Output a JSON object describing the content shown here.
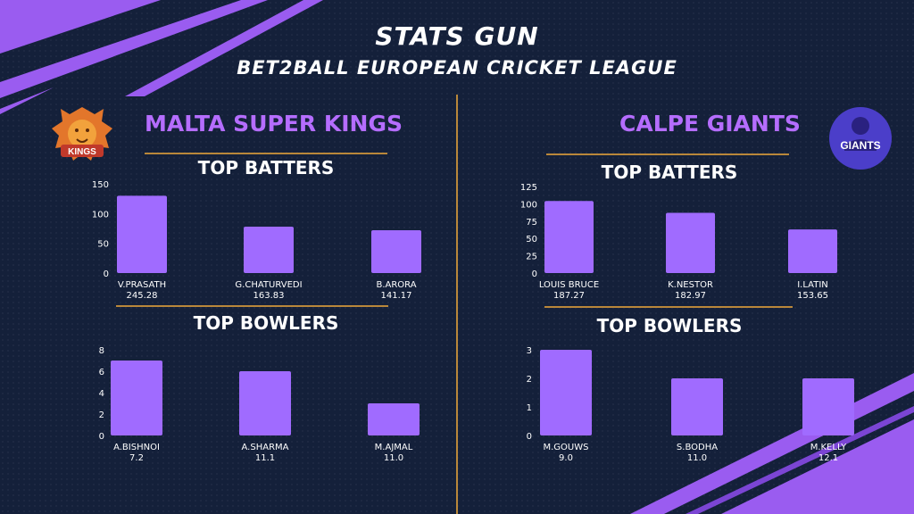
{
  "header": {
    "title": "STATS GUN",
    "subtitle": "BET2BALL EUROPEAN CRICKET LEAGUE"
  },
  "colors": {
    "bar": "#a06bff",
    "accent_purple": "#b56dff",
    "divider_gold": "#b9873a",
    "background": "#14203a"
  },
  "teams": [
    {
      "name": "MALTA SUPER KINGS",
      "logo_icon": "lion-icon",
      "logo_text": "KINGS"
    },
    {
      "name": "CALPE GIANTS",
      "logo_icon": "giant-icon",
      "logo_text": "GIANTS"
    }
  ],
  "chart_data": [
    {
      "type": "bar",
      "title": "TOP BATTERS",
      "categories": [
        "V.PRASATH",
        "G.CHATURVEDI",
        "B.ARORA"
      ],
      "values": [
        130,
        78,
        72
      ],
      "value_labels": [
        "245.28",
        "163.83",
        "141.17"
      ],
      "yticks": [
        0,
        50,
        100,
        150
      ],
      "ylim": [
        0,
        150
      ]
    },
    {
      "type": "bar",
      "title": "TOP BOWLERS",
      "categories": [
        "A.BISHNOI",
        "A.SHARMA",
        "M.AJMAL"
      ],
      "values": [
        7,
        6,
        3
      ],
      "value_labels": [
        "7.2",
        "11.1",
        "11.0"
      ],
      "yticks": [
        0,
        2,
        4,
        6,
        8
      ],
      "ylim": [
        0,
        8
      ]
    },
    {
      "type": "bar",
      "title": "TOP BATTERS",
      "categories": [
        "LOUIS BRUCE",
        "K.NESTOR",
        "I.LATIN"
      ],
      "values": [
        104,
        87,
        63
      ],
      "value_labels": [
        "187.27",
        "182.97",
        "153.65"
      ],
      "yticks": [
        0,
        25,
        50,
        75,
        100,
        125
      ],
      "ylim": [
        0,
        125
      ]
    },
    {
      "type": "bar",
      "title": "TOP BOWLERS",
      "categories": [
        "M.GOUWS",
        "S.BODHA",
        "M.KELLY"
      ],
      "values": [
        3,
        2,
        2
      ],
      "value_labels": [
        "9.0",
        "11.0",
        "12.1"
      ],
      "yticks": [
        0,
        1,
        2,
        3
      ],
      "ylim": [
        0,
        3
      ]
    }
  ]
}
